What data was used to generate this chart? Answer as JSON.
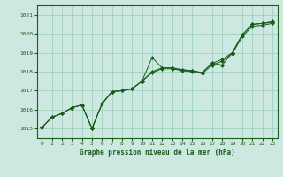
{
  "title": "Graphe pression niveau de la mer (hPa)",
  "bg_color": "#cce8e0",
  "grid_color": "#99ccbb",
  "line_color": "#1a5c1a",
  "marker_color": "#1a5c1a",
  "xlim": [
    -0.5,
    23.5
  ],
  "ylim": [
    1014.5,
    1021.5
  ],
  "yticks": [
    1015,
    1016,
    1017,
    1018,
    1019,
    1020,
    1021
  ],
  "xticks": [
    0,
    1,
    2,
    3,
    4,
    5,
    6,
    7,
    8,
    9,
    10,
    11,
    12,
    13,
    14,
    15,
    16,
    17,
    18,
    19,
    20,
    21,
    22,
    23
  ],
  "series1": [
    1015.05,
    1015.6,
    1015.8,
    1016.1,
    1016.25,
    1015.0,
    1016.3,
    1016.95,
    1017.0,
    1017.1,
    1017.5,
    1018.75,
    1018.2,
    1018.2,
    1018.1,
    1018.05,
    1017.95,
    1018.45,
    1018.35,
    1019.0,
    1019.95,
    1020.5,
    1020.55,
    1020.6
  ],
  "series2": [
    1015.05,
    1015.6,
    1015.8,
    1016.1,
    1016.25,
    1015.0,
    1016.3,
    1016.95,
    1017.0,
    1017.1,
    1017.5,
    1018.0,
    1018.2,
    1018.2,
    1018.1,
    1018.05,
    1017.95,
    1018.45,
    1018.65,
    1019.0,
    1019.95,
    1020.5,
    1020.55,
    1020.65
  ],
  "series3": [
    1015.05,
    1015.6,
    1015.8,
    1016.1,
    1016.25,
    1015.0,
    1016.3,
    1016.95,
    1017.0,
    1017.1,
    1017.5,
    1017.95,
    1018.15,
    1018.15,
    1018.05,
    1018.0,
    1017.9,
    1018.35,
    1018.55,
    1018.95,
    1019.85,
    1020.4,
    1020.45,
    1020.55
  ]
}
